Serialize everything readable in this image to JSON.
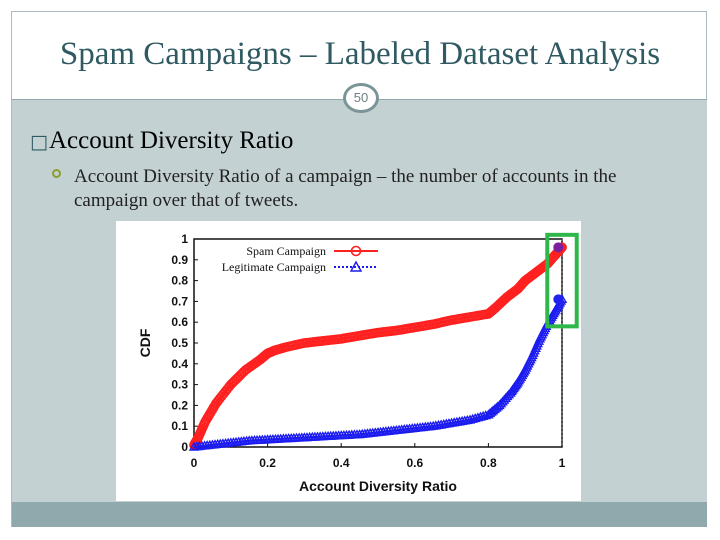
{
  "slide": {
    "title": "Spam Campaigns – Labeled Dataset Analysis",
    "page_number": "50",
    "bullet_marker": "\u0000",
    "heading": "Account Diversity Ratio",
    "sub_bullet": "Account Diversity Ratio of a campaign – the number of accounts in the campaign over that of tweets."
  },
  "colors": {
    "title": "#2f5a62",
    "band": "#c4d1d2",
    "footer": "#8fa9ac",
    "spam": "#ff2020",
    "legit": "#1c1cf0",
    "highlight": "#2eb84a"
  },
  "chart_data": {
    "type": "line",
    "xlabel": "Account Diversity Ratio",
    "ylabel": "CDF",
    "xlim": [
      0,
      1
    ],
    "ylim": [
      0,
      1
    ],
    "x_ticks": [
      "0",
      "0.2",
      "0.4",
      "0.6",
      "0.8",
      "1"
    ],
    "y_ticks": [
      "0",
      "0.1",
      "0.2",
      "0.3",
      "0.4",
      "0.5",
      "0.6",
      "0.7",
      "0.8",
      "0.9",
      "1"
    ],
    "legend_position": "top-left",
    "grid": false,
    "series": [
      {
        "name": "Spam Campaign",
        "marker": "circle",
        "color": "#ff2020",
        "x": [
          0,
          0.01,
          0.03,
          0.06,
          0.1,
          0.14,
          0.18,
          0.2,
          0.22,
          0.25,
          0.3,
          0.35,
          0.4,
          0.45,
          0.5,
          0.55,
          0.6,
          0.65,
          0.7,
          0.75,
          0.8,
          0.82,
          0.85,
          0.88,
          0.9,
          0.93,
          0.96,
          0.98,
          1.0
        ],
        "y": [
          0.01,
          0.04,
          0.12,
          0.21,
          0.3,
          0.37,
          0.42,
          0.45,
          0.465,
          0.48,
          0.5,
          0.51,
          0.52,
          0.535,
          0.55,
          0.56,
          0.575,
          0.59,
          0.61,
          0.625,
          0.64,
          0.67,
          0.72,
          0.76,
          0.8,
          0.84,
          0.88,
          0.92,
          0.96
        ]
      },
      {
        "name": "Legitimate Campaign",
        "marker": "triangle",
        "color": "#1c1cf0",
        "x": [
          0,
          0.05,
          0.1,
          0.15,
          0.2,
          0.25,
          0.3,
          0.35,
          0.4,
          0.45,
          0.5,
          0.55,
          0.6,
          0.65,
          0.7,
          0.75,
          0.8,
          0.83,
          0.86,
          0.88,
          0.9,
          0.92,
          0.94,
          0.96,
          0.98,
          1.0
        ],
        "y": [
          0.0,
          0.01,
          0.02,
          0.03,
          0.035,
          0.04,
          0.045,
          0.05,
          0.055,
          0.06,
          0.07,
          0.08,
          0.09,
          0.1,
          0.115,
          0.13,
          0.155,
          0.2,
          0.26,
          0.31,
          0.37,
          0.44,
          0.52,
          0.59,
          0.65,
          0.71
        ]
      }
    ],
    "annotation": {
      "type": "highlight-box",
      "x_range": [
        0.96,
        1.04
      ],
      "y_range": [
        0.58,
        1.02
      ],
      "color": "#2eb84a"
    }
  }
}
